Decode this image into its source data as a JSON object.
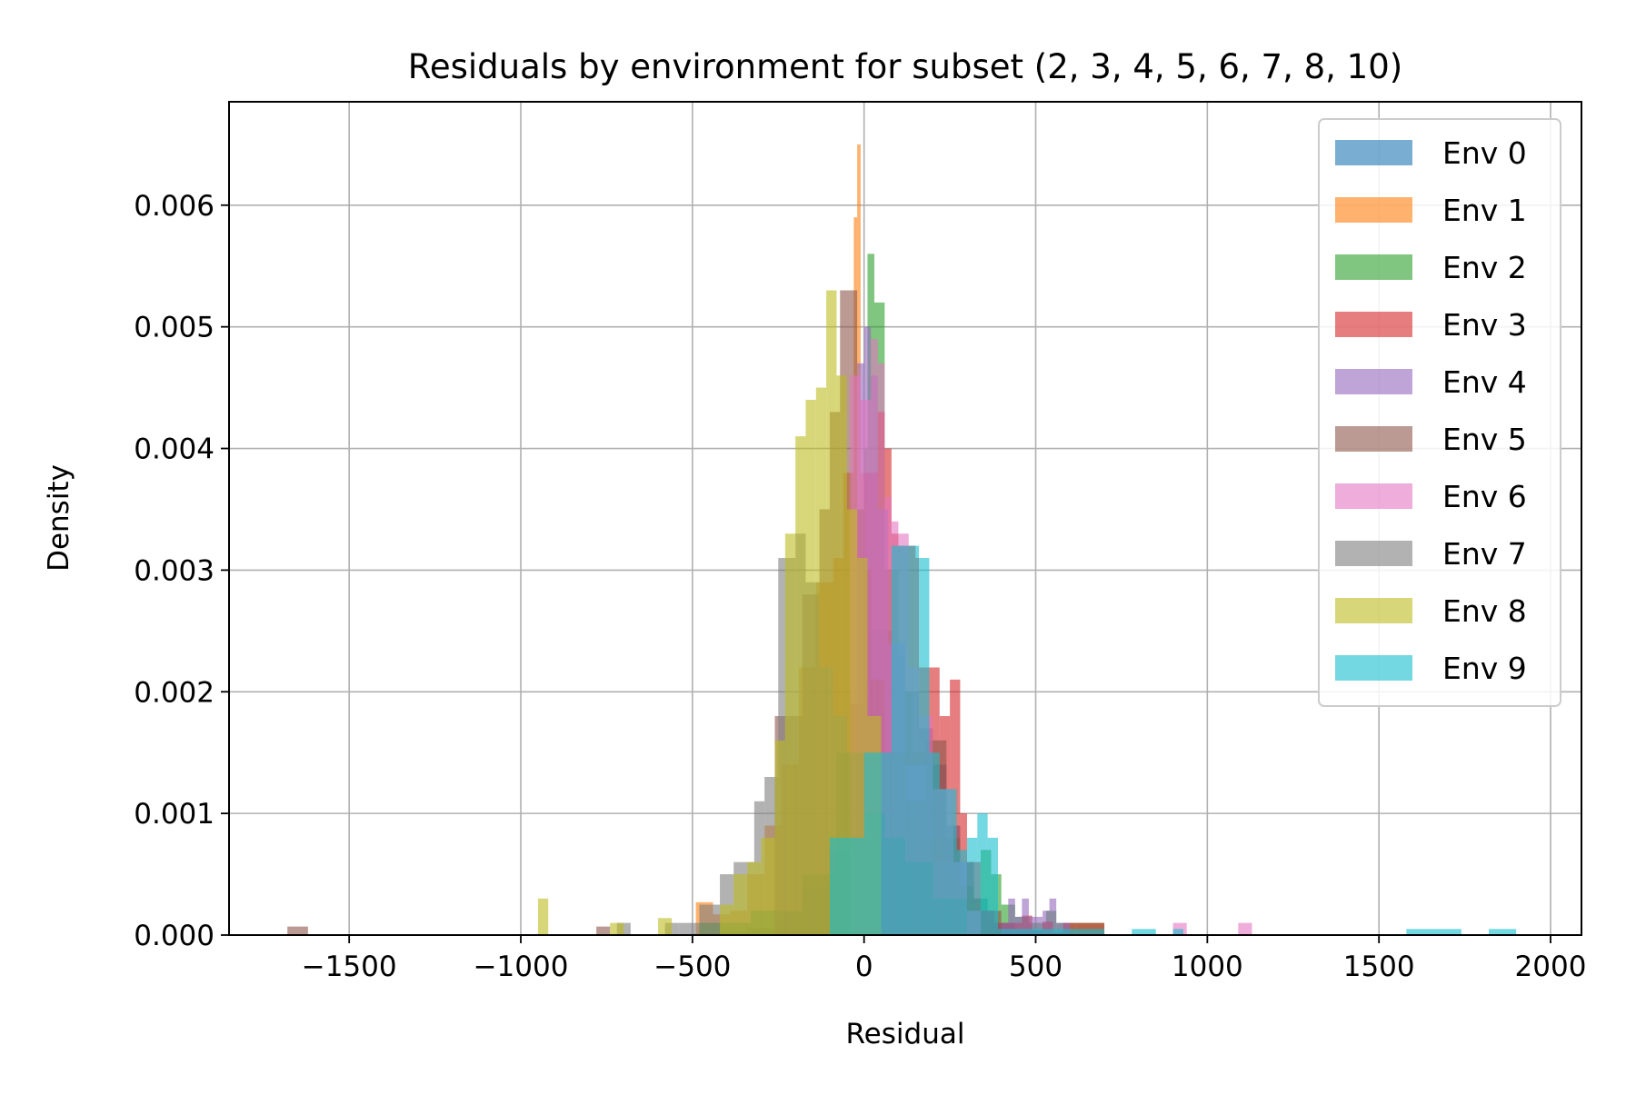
{
  "chart_data": {
    "type": "histogram",
    "title": "Residuals by environment for subset (2, 3, 4, 5, 6, 7, 8, 10)",
    "xlabel": "Residual",
    "ylabel": "Density",
    "xlim": [
      -1850,
      2090
    ],
    "ylim": [
      0,
      0.00685
    ],
    "xticks": [
      -1500,
      -1000,
      -500,
      0,
      500,
      1000,
      1500,
      2000
    ],
    "xtick_labels": [
      "−1500",
      "−1000",
      "−500",
      "0",
      "500",
      "1000",
      "1500",
      "2000"
    ],
    "yticks": [
      0,
      0.001,
      0.002,
      0.003,
      0.004,
      0.005,
      0.006
    ],
    "ytick_labels": [
      "0.000",
      "0.001",
      "0.002",
      "0.003",
      "0.004",
      "0.005",
      "0.006"
    ],
    "grid": true,
    "legend_position": "top-right",
    "alpha": 0.6,
    "series": [
      {
        "name": "Env 0",
        "color": "#1f77b4",
        "bin_edges": [
          -500,
          -420,
          -340,
          -260,
          -180,
          -100,
          -20,
          0,
          40,
          80,
          120,
          160,
          200,
          240,
          280,
          320,
          360,
          440,
          520,
          600
        ],
        "values": [
          1e-05,
          2e-05,
          6e-05,
          0.00018,
          0.0004,
          0.0007,
          0.0009,
          0.0025,
          0.0025,
          0.0023,
          0.002,
          0.0017,
          0.0014,
          0.0009,
          0.0006,
          0.0003,
          0.0001,
          4e-05,
          1e-05
        ]
      },
      {
        "name": "Env 1",
        "color": "#ff7f0e",
        "bin_edges": [
          -490,
          -440,
          -390,
          -340,
          -290,
          -240,
          -190,
          -140,
          -90,
          -60,
          -30,
          -20,
          -10,
          10,
          60,
          110
        ],
        "values": [
          0.00027,
          0.00017,
          0.0002,
          0.0005,
          0.0009,
          0.0014,
          0.0022,
          0.0029,
          0.0031,
          0.0038,
          0.0059,
          0.0065,
          0.0038,
          0.0012,
          0.0003
        ]
      },
      {
        "name": "Env 2",
        "color": "#2ca02c",
        "bin_edges": [
          -480,
          -330,
          -180,
          -80,
          0,
          10,
          30,
          60,
          100,
          140,
          180,
          240,
          300,
          340,
          370,
          400,
          440,
          480,
          530,
          560,
          620,
          660,
          700
        ],
        "values": [
          0.0001,
          0.0002,
          0.0005,
          0.0015,
          0.004,
          0.0056,
          0.0052,
          0.003,
          0.002,
          0.0015,
          0.0008,
          0.00055,
          0.0003,
          0.0007,
          0.0005,
          0.00025,
          0.00015,
          0.0001,
          0.0002,
          0.0001,
          0.0001,
          0.0001
        ]
      },
      {
        "name": "Env 3",
        "color": "#d62728",
        "bin_edges": [
          -40,
          0,
          40,
          60,
          80,
          100,
          150,
          160,
          190,
          220,
          250,
          280,
          300,
          340,
          380,
          460,
          490,
          520,
          550,
          580,
          620,
          660,
          700
        ],
        "values": [
          0.0019,
          0.0038,
          0.0043,
          0.004,
          0.0033,
          0.0032,
          0.0031,
          0.0022,
          0.0022,
          0.0018,
          0.0021,
          0.001,
          0.0006,
          0.0002,
          0.0001,
          0.00016,
          3e-05,
          0.00011,
          2e-05,
          0.0001,
          0.0001,
          0.0001
        ]
      },
      {
        "name": "Env 4",
        "color": "#9467bd",
        "bin_edges": [
          -20,
          0,
          20,
          40,
          70,
          120,
          200,
          300,
          380,
          420,
          440,
          460,
          480,
          520,
          540,
          560,
          600
        ],
        "values": [
          0.0047,
          0.005,
          0.0046,
          0.0035,
          0.0024,
          0.0014,
          0.0006,
          0.0002,
          0.0001,
          0.0003,
          0.00015,
          0.0003,
          0.00015,
          0.0002,
          0.0003,
          0.0001
        ]
      },
      {
        "name": "Env 5",
        "color": "#8c564b",
        "bin_edges": [
          -1680,
          -1620,
          -780,
          -740,
          -260,
          -230,
          -180,
          -130,
          -100,
          -70,
          -40,
          -20,
          0,
          20,
          60,
          120,
          180,
          240,
          280,
          320,
          400
        ],
        "values": [
          7e-05,
          0,
          7e-05,
          0,
          0.0018,
          0.0018,
          0.0028,
          0.0035,
          0.0043,
          0.0053,
          0.0053,
          0.0035,
          0.003,
          0.0021,
          0.0015,
          0.0011,
          0.0016,
          0.0008,
          0.0004,
          0.0002
        ]
      },
      {
        "name": "Env 6",
        "color": "#e377c2",
        "bin_edges": [
          -40,
          -10,
          20,
          40,
          60,
          80,
          100,
          130,
          160,
          200,
          260,
          300,
          340,
          900,
          940,
          1090,
          1130
        ],
        "values": [
          0.0046,
          0.0044,
          0.0049,
          0.0047,
          0.0036,
          0.0034,
          0.0033,
          0.0022,
          0.0018,
          0.0012,
          0.0006,
          0.0002,
          0,
          0.0001,
          0,
          0.0001
        ]
      },
      {
        "name": "Env 7",
        "color": "#7f7f7f",
        "bin_edges": [
          -720,
          -680,
          -580,
          -540,
          -480,
          -420,
          -380,
          -320,
          -290,
          -250,
          -200,
          -170,
          -130,
          -90,
          -50,
          0,
          60,
          120,
          200,
          300
        ],
        "values": [
          0.0001,
          0,
          0.0001,
          0.0001,
          0.00025,
          0.0005,
          0.0006,
          0.0011,
          0.0013,
          0.0031,
          0.0033,
          0.0029,
          0.0022,
          0.0018,
          0.0015,
          0.001,
          0.0008,
          0.0006,
          0.0003
        ]
      },
      {
        "name": "Env 8",
        "color": "#bcbd22",
        "bin_edges": [
          -950,
          -920,
          -740,
          -700,
          -600,
          -560,
          -420,
          -380,
          -340,
          -300,
          -260,
          -230,
          -200,
          -170,
          -140,
          -110,
          -80,
          -50,
          -20,
          10,
          50
        ],
        "values": [
          0.0003,
          0,
          0.0001,
          0,
          0.00014,
          0,
          0.00025,
          0.0005,
          0.0006,
          0.0008,
          0.0016,
          0.0033,
          0.0041,
          0.0044,
          0.0045,
          0.0053,
          0.0046,
          0.0035,
          0.0031,
          0.0018
        ]
      },
      {
        "name": "Env 9",
        "color": "#17becf",
        "bin_edges": [
          -100,
          0,
          80,
          160,
          190,
          220,
          270,
          300,
          330,
          360,
          390,
          700,
          780,
          850,
          900,
          930,
          960,
          1580,
          1740,
          1820,
          1900
        ],
        "values": [
          0.0008,
          0.0015,
          0.0032,
          0.0031,
          0.0015,
          0.0012,
          0.0007,
          0.0008,
          0.001,
          0.0008,
          5e-05,
          0,
          5e-05,
          0,
          5e-05,
          0,
          0,
          5e-05,
          0,
          5e-05
        ]
      }
    ]
  }
}
